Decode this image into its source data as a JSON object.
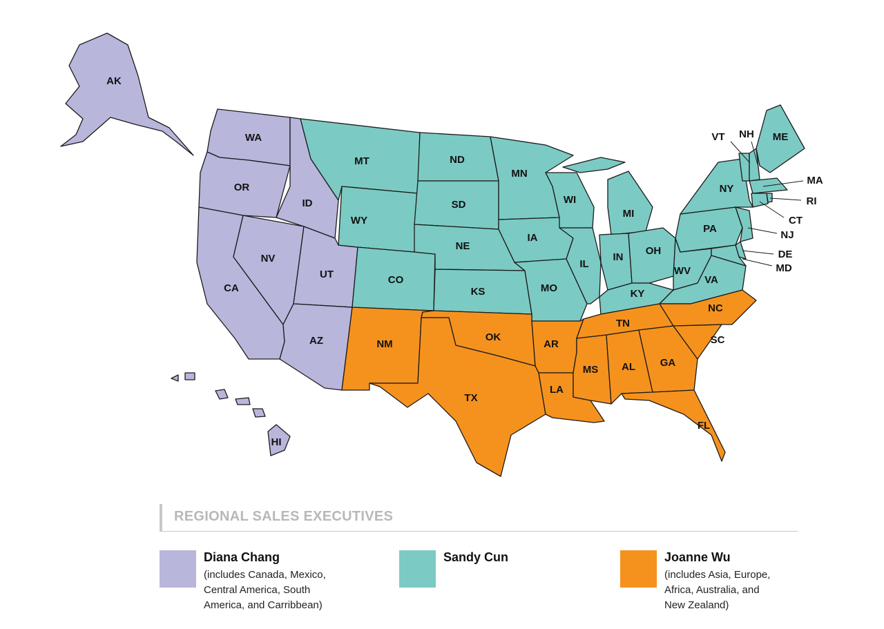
{
  "legend_title": "REGIONAL SALES EXECUTIVES",
  "regions": [
    {
      "name": "Diana Chang",
      "note": [
        "(includes Canada, Mexico,",
        "Central America, South",
        "America, and Carribbean)"
      ],
      "color": "#b9b6dc",
      "states": [
        "AK",
        "HI",
        "WA",
        "OR",
        "CA",
        "NV",
        "ID",
        "UT",
        "AZ"
      ]
    },
    {
      "name": "Sandy Cun",
      "note": [],
      "color": "#7ccac4",
      "states": [
        "MT",
        "WY",
        "CO",
        "ND",
        "SD",
        "NE",
        "KS",
        "MN",
        "IA",
        "MO",
        "WI",
        "IL",
        "MI",
        "IN",
        "OH",
        "KY",
        "WV",
        "VA",
        "PA",
        "NY",
        "VT",
        "NH",
        "ME",
        "MA",
        "RI",
        "CT",
        "NJ",
        "DE",
        "MD"
      ]
    },
    {
      "name": "Joanne Wu",
      "note": [
        "(includes Asia, Europe,",
        "Africa, Australia, and",
        "New Zealand)"
      ],
      "color": "#f5921e",
      "states": [
        "NM",
        "TX",
        "OK",
        "AR",
        "LA",
        "MS",
        "AL",
        "TN",
        "GA",
        "FL",
        "SC",
        "NC"
      ]
    }
  ]
}
